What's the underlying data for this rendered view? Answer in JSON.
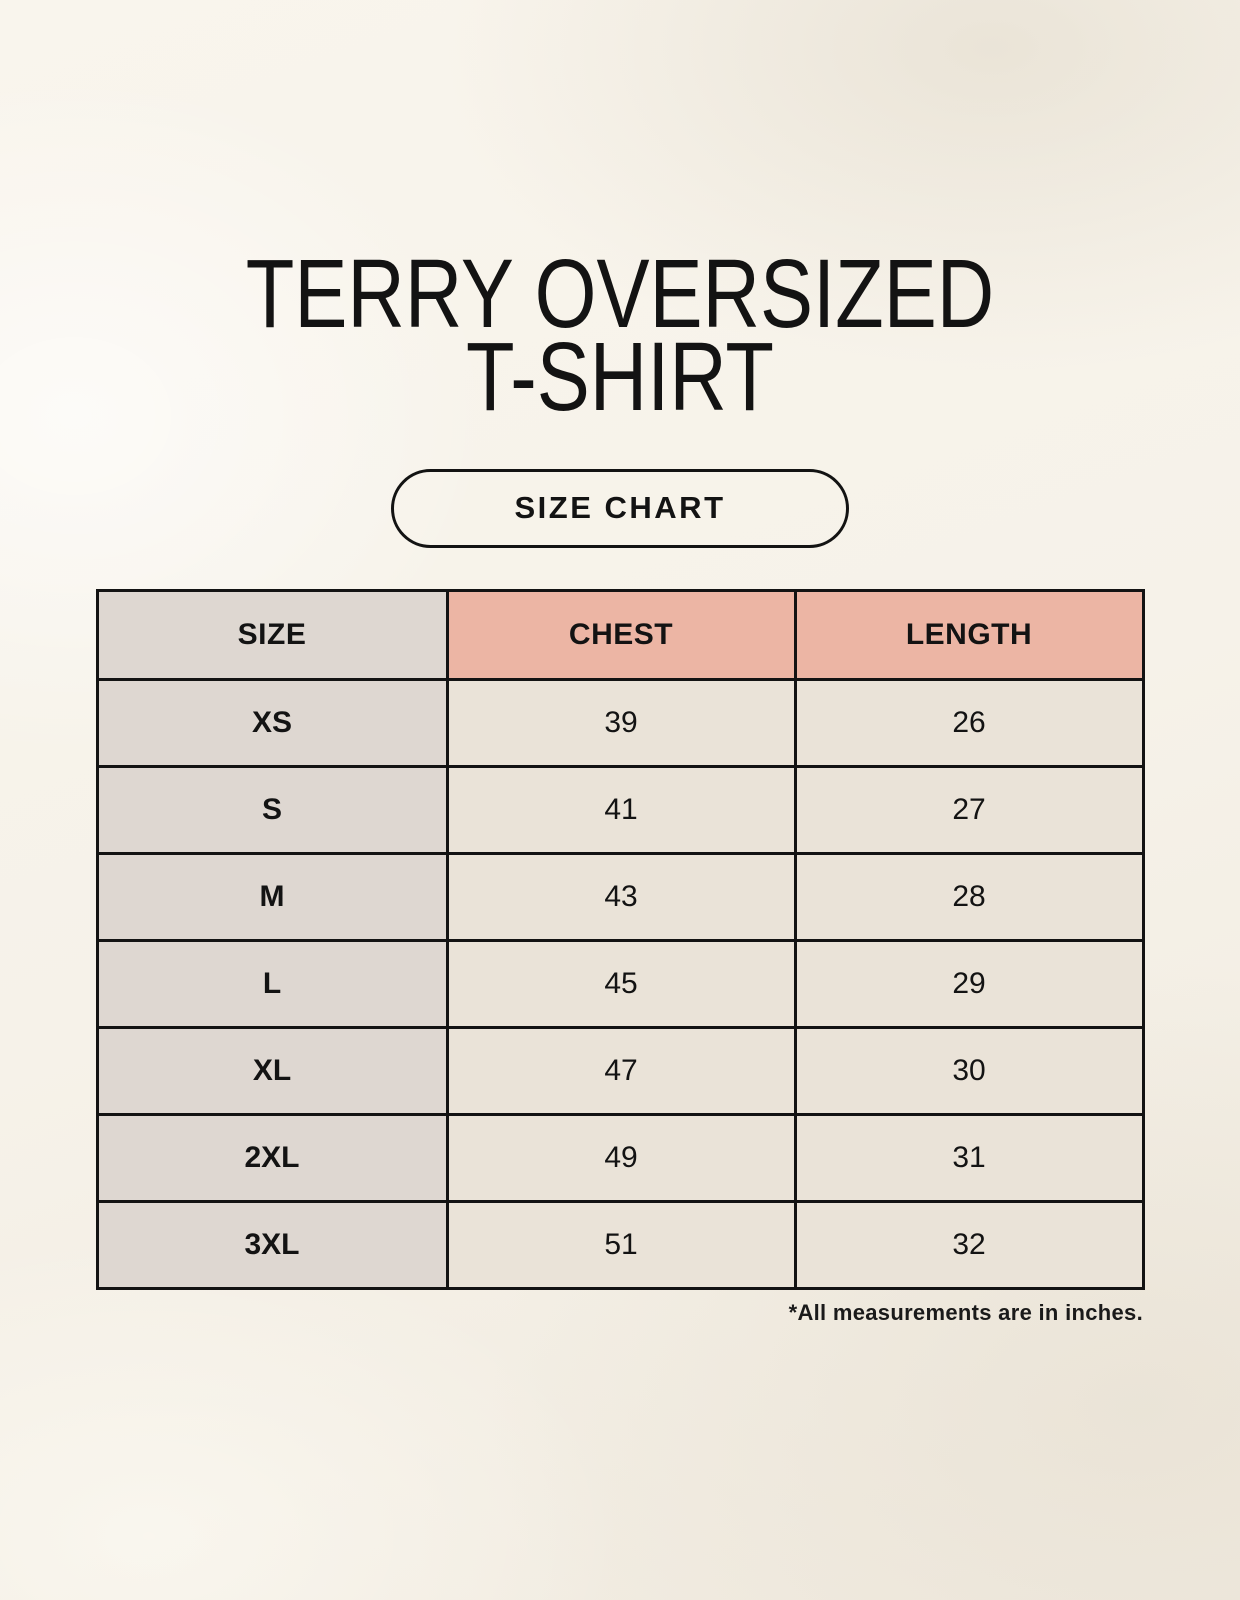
{
  "page": {
    "title_line1": "TERRY OVERSIZED",
    "title_line2": "T-SHIRT",
    "button_label": "SIZE CHART",
    "footnote": "*All measurements are in inches."
  },
  "colors": {
    "background": "#f6f2e9",
    "accent_pink_header": "#ecb5a4",
    "size_column_gray": "#ded7d1",
    "value_cell_cream": "#eae3d8",
    "border_and_text": "#131313"
  },
  "chart_data": {
    "type": "table",
    "title": "TERRY OVERSIZED T-SHIRT",
    "columns": [
      "SIZE",
      "CHEST",
      "LENGTH"
    ],
    "rows": [
      [
        "XS",
        "39",
        "26"
      ],
      [
        "S",
        "41",
        "27"
      ],
      [
        "M",
        "43",
        "28"
      ],
      [
        "L",
        "45",
        "29"
      ],
      [
        "XL",
        "47",
        "30"
      ],
      [
        "2XL",
        "49",
        "31"
      ],
      [
        "3XL",
        "51",
        "32"
      ]
    ],
    "units_note": "All measurements are in inches"
  }
}
